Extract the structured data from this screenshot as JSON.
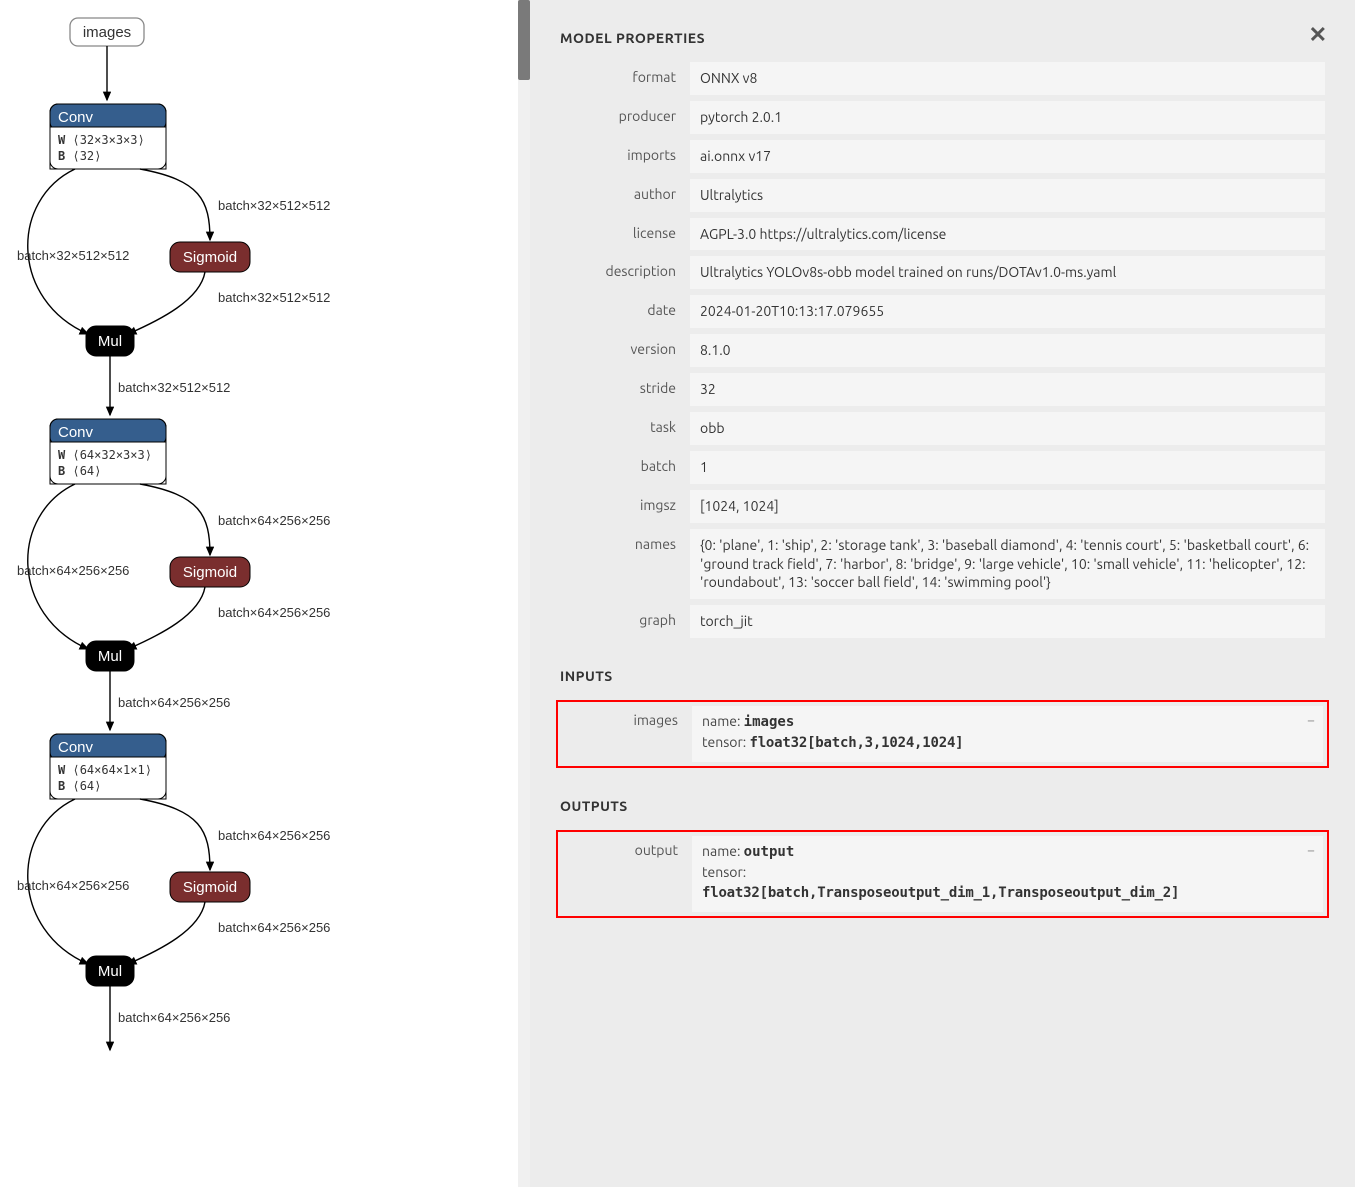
{
  "panel": {
    "title": "MODEL PROPERTIES",
    "inputs_title": "INPUTS",
    "outputs_title": "OUTPUTS"
  },
  "properties": [
    {
      "label": "format",
      "value": "ONNX v8"
    },
    {
      "label": "producer",
      "value": "pytorch 2.0.1"
    },
    {
      "label": "imports",
      "value": "ai.onnx v17"
    },
    {
      "label": "author",
      "value": "Ultralytics"
    },
    {
      "label": "license",
      "value": "AGPL-3.0 https://ultralytics.com/license"
    },
    {
      "label": "description",
      "value": "Ultralytics YOLOv8s-obb model trained on runs/DOTAv1.0-ms.yaml"
    },
    {
      "label": "date",
      "value": "2024-01-20T10:13:17.079655"
    },
    {
      "label": "version",
      "value": "8.1.0"
    },
    {
      "label": "stride",
      "value": "32"
    },
    {
      "label": "task",
      "value": "obb"
    },
    {
      "label": "batch",
      "value": "1"
    },
    {
      "label": "imgsz",
      "value": "[1024, 1024]"
    },
    {
      "label": "names",
      "value": "{0: 'plane', 1: 'ship', 2: 'storage tank', 3: 'baseball diamond', 4: 'tennis court', 5: 'basketball court', 6: 'ground track field', 7: 'harbor', 8: 'bridge', 9: 'large vehicle', 10: 'small vehicle', 11: 'helicopter', 12: 'roundabout', 13: 'soccer ball field', 14: 'swimming pool'}"
    },
    {
      "label": "graph",
      "value": "torch_jit"
    }
  ],
  "inputs": {
    "label": "images",
    "name_key": "name:",
    "name_val": "images",
    "tensor_key": "tensor:",
    "tensor_val": "float32[batch,3,1024,1024]"
  },
  "outputs": {
    "label": "output",
    "name_key": "name:",
    "name_val": "output",
    "tensor_key": "tensor:",
    "tensor_val": "float32[batch,Transposeoutput_dim_1,Transposeoutput_dim_2]"
  },
  "graph": {
    "input_node": "images",
    "conv_label": "Conv",
    "sigmoid_label": "Sigmoid",
    "mul_label": "Mul",
    "w_label": "W",
    "b_label": "B",
    "blocks": [
      {
        "w": "⟨32×3×3×3⟩",
        "b": "⟨32⟩",
        "dim": "batch×32×512×512"
      },
      {
        "w": "⟨64×32×3×3⟩",
        "b": "⟨64⟩",
        "dim": "batch×64×256×256"
      },
      {
        "w": "⟨64×64×1×1⟩",
        "b": "⟨64⟩",
        "dim": "batch×64×256×256"
      }
    ],
    "colors": {
      "conv_header": "#355e8d",
      "sigmoid": "#7a2e2e",
      "mul": "#000000",
      "edge": "#000000",
      "background": "#ffffff"
    },
    "node_styling": {
      "border_radius": 8,
      "stroke_width": 1,
      "font_size_label": 15,
      "font_size_sub": 12
    }
  }
}
